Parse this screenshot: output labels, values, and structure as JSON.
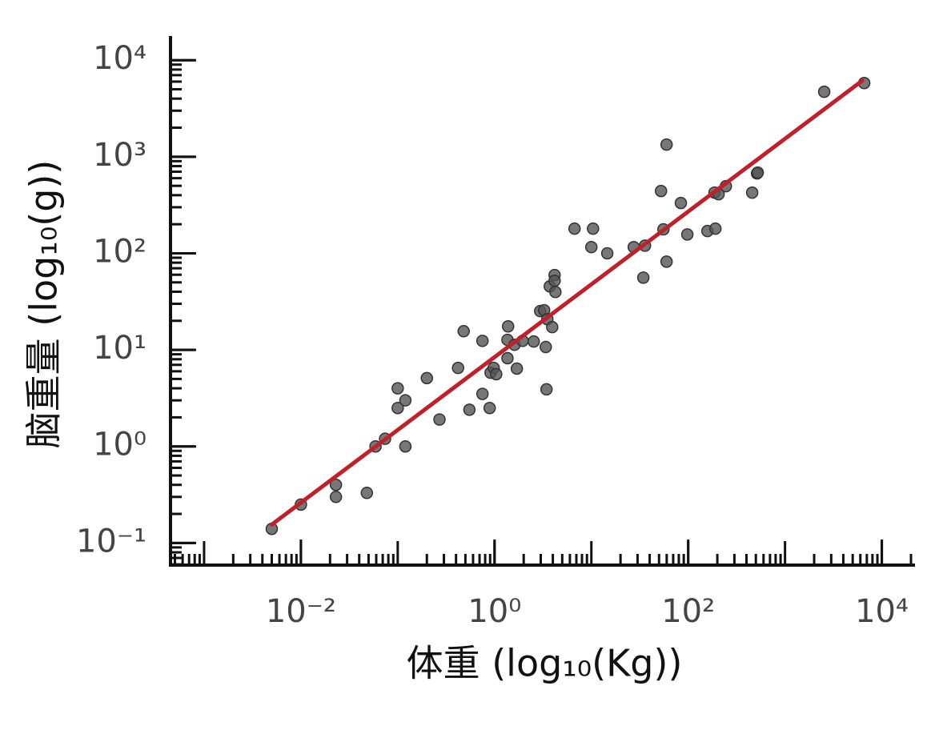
{
  "chart_data": {
    "type": "scatter",
    "x_label": "体重 (log₁₀(Kg))",
    "y_label": "脑重量 (log₁₀(g))",
    "log_x": true,
    "log_y": true,
    "minor_ticks": true,
    "xlim": [
      0.00045,
      22000
    ],
    "ylim": [
      0.059,
      17800
    ],
    "xticks": [
      {
        "value": 0.01,
        "label": "10⁻²"
      },
      {
        "value": 1,
        "label": "10⁰"
      },
      {
        "value": 100,
        "label": "10²"
      },
      {
        "value": 10000,
        "label": "10⁴"
      }
    ],
    "yticks": [
      {
        "value": 0.1,
        "label": "10⁻¹"
      },
      {
        "value": 1,
        "label": "10⁰"
      },
      {
        "value": 10,
        "label": "10¹"
      },
      {
        "value": 100,
        "label": "10²"
      },
      {
        "value": 1000,
        "label": "10³"
      },
      {
        "value": 10000,
        "label": "10⁴"
      }
    ],
    "color": "#555555",
    "x": [
      0.005,
      0.01,
      0.023,
      0.023,
      0.048,
      0.059,
      0.074,
      0.1,
      0.1,
      0.12,
      0.12,
      0.2,
      0.27,
      0.42,
      0.48,
      0.55,
      0.75,
      0.75,
      0.89,
      0.91,
      0.98,
      1.04,
      1.38,
      1.36,
      1.36,
      1.61,
      1.7,
      1.95,
      2.54,
      2.96,
      3.25,
      3.38,
      3.44,
      3.51,
      3.72,
      3.94,
      4.17,
      4.17,
      4.25,
      6.7,
      10,
      10.4,
      14.6,
      27.4,
      34.4,
      35.8,
      52.4,
      55.5,
      59.8,
      59.8,
      84,
      98,
      158,
      187,
      191,
      206,
      245,
      458,
      514,
      523,
      2540,
      6580
    ],
    "values": [
      0.14,
      0.25,
      0.4,
      0.3,
      0.33,
      1.0,
      1.2,
      4.0,
      2.5,
      3.0,
      1.0,
      5.1,
      1.9,
      6.5,
      15.6,
      2.4,
      3.5,
      12.4,
      2.5,
      5.8,
      6.5,
      5.6,
      17.5,
      8.2,
      12.7,
      11.3,
      6.4,
      12.4,
      12.2,
      25.2,
      25.7,
      10.7,
      3.9,
      20.8,
      45.5,
      17.2,
      59.5,
      52,
      39.8,
      180,
      116,
      180,
      100,
      116,
      56,
      120,
      442,
      177,
      1336,
      82,
      332,
      157,
      170,
      425,
      180,
      409,
      495,
      425,
      673,
      685,
      4710,
      5800
    ],
    "fit": {
      "x": [
        0.005,
        6300
      ],
      "values": [
        0.155,
        6150
      ],
      "color": "#c0202a"
    }
  }
}
